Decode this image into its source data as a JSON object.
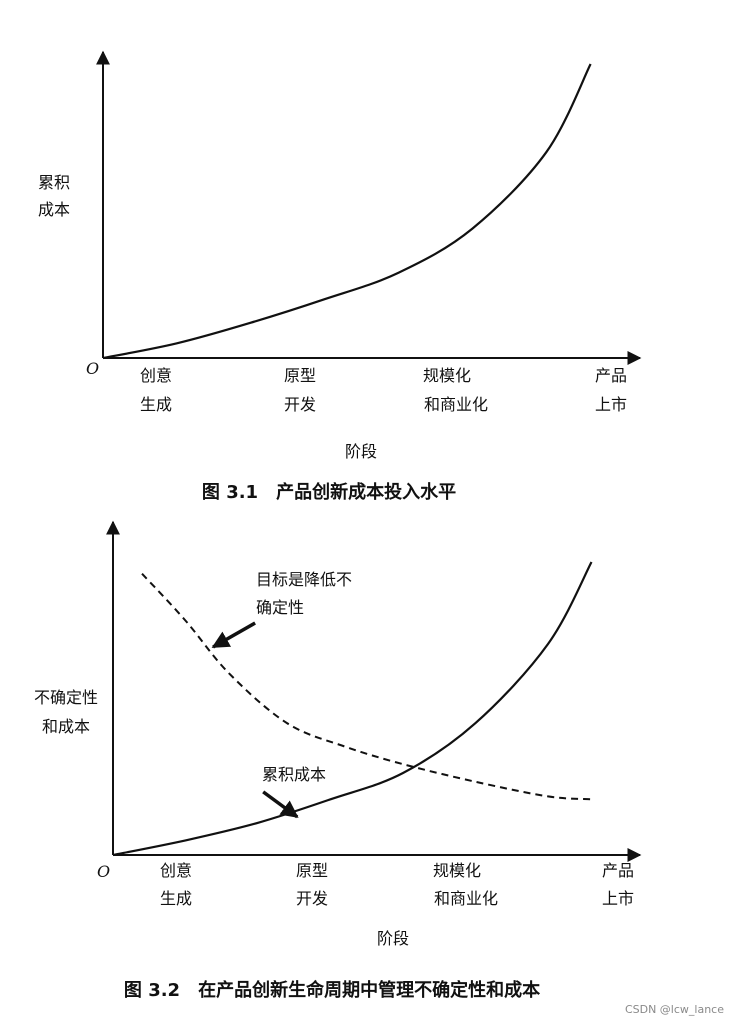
{
  "colors": {
    "ink": "#111111",
    "background": "#ffffff",
    "watermark": "#8a8a8a"
  },
  "watermark": "CSDN @lcw_lance",
  "chart_data": [
    {
      "type": "line",
      "figure_id": "fig1",
      "caption": "图 3.1　产品创新成本投入水平",
      "ylabel": [
        "累积",
        "成本"
      ],
      "xlabel": "阶段",
      "origin_label": "O",
      "categories": [
        [
          "创意",
          "生成"
        ],
        [
          "原型",
          "开发"
        ],
        [
          "规模化",
          "和商业化"
        ],
        [
          "产品",
          "上市"
        ]
      ],
      "xlim": [
        0,
        3.5
      ],
      "ylim": [
        0,
        100
      ],
      "grid": false,
      "legend": "none",
      "series": [
        {
          "style": "solid",
          "x": [
            0,
            0.5,
            1.0,
            1.5,
            2.0,
            2.5,
            3.0,
            3.3
          ],
          "y": [
            0,
            5,
            12,
            20,
            29,
            44,
            70,
            100
          ]
        }
      ],
      "annotations": []
    },
    {
      "type": "line",
      "figure_id": "fig2",
      "caption": "图 3.2　在产品创新生命周期中管理不确定性和成本",
      "ylabel": [
        "不确定性",
        "和成本"
      ],
      "xlabel": "阶段",
      "origin_label": "O",
      "categories": [
        [
          "创意",
          "生成"
        ],
        [
          "原型",
          "开发"
        ],
        [
          "规模化",
          "和商业化"
        ],
        [
          "产品",
          "上市"
        ]
      ],
      "xlim": [
        0,
        3.5
      ],
      "ylim": [
        0,
        100
      ],
      "grid": false,
      "legend": "none",
      "series": [
        {
          "style": "solid",
          "x": [
            0,
            0.5,
            1.0,
            1.5,
            2.0,
            2.5,
            3.0,
            3.3
          ],
          "y": [
            0,
            5,
            11,
            19,
            28,
            45,
            72,
            100
          ]
        },
        {
          "style": "dashed",
          "x": [
            0.2,
            0.5,
            0.8,
            1.2,
            1.6,
            2.0,
            2.5,
            3.0,
            3.3
          ],
          "y": [
            96,
            80,
            62,
            45,
            37,
            31,
            25,
            20,
            19
          ]
        }
      ],
      "annotations": [
        {
          "lines": [
            "目标是降低不",
            "确定性"
          ],
          "target_series": 1,
          "target_x": 0.69,
          "target_y": 71
        },
        {
          "lines": [
            "累积成本"
          ],
          "target_series": 0,
          "target_x": 1.27,
          "target_y": 13
        }
      ]
    }
  ]
}
